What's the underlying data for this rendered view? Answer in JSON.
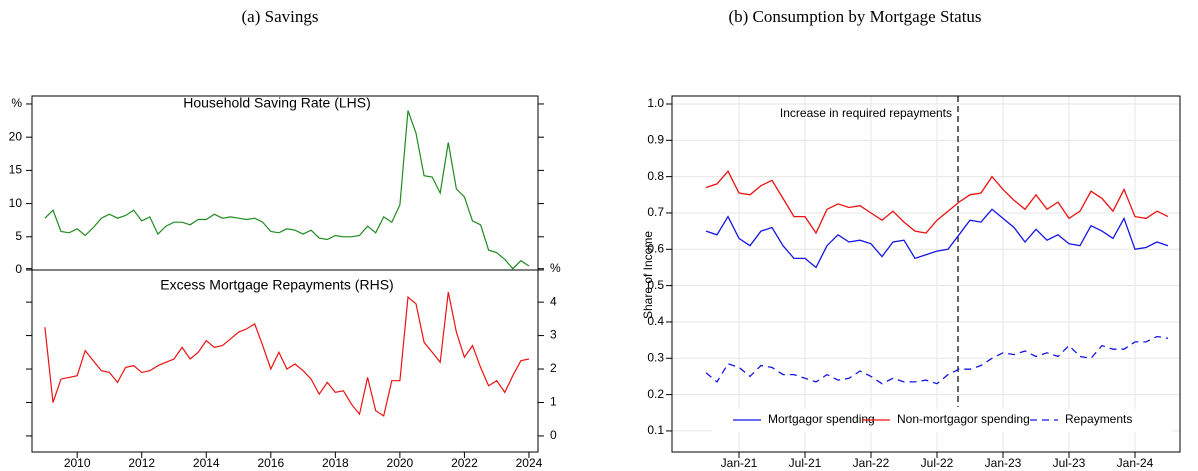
{
  "chart_data": [
    {
      "type": "line",
      "caption": "(a) Savings",
      "x": [
        2009,
        2009.25,
        2009.5,
        2009.75,
        2010,
        2010.25,
        2010.5,
        2010.75,
        2011,
        2011.25,
        2011.5,
        2011.75,
        2012,
        2012.25,
        2012.5,
        2012.75,
        2013,
        2013.25,
        2013.5,
        2013.75,
        2014,
        2014.25,
        2014.5,
        2014.75,
        2015,
        2015.25,
        2015.5,
        2015.75,
        2016,
        2016.25,
        2016.5,
        2016.75,
        2017,
        2017.25,
        2017.5,
        2017.75,
        2018,
        2018.25,
        2018.5,
        2018.75,
        2019,
        2019.25,
        2019.5,
        2019.75,
        2020,
        2020.25,
        2020.5,
        2020.75,
        2021,
        2021.25,
        2021.5,
        2021.75,
        2022,
        2022.25,
        2022.5,
        2022.75,
        2023,
        2023.25,
        2023.5,
        2023.75,
        2024
      ],
      "xlim": [
        2008.6,
        2024.28
      ],
      "xticks": [
        2010,
        2012,
        2014,
        2016,
        2018,
        2020,
        2022,
        2024
      ],
      "panels": [
        {
          "tick_side": "left",
          "ylim": [
            0,
            26.2
          ],
          "yticks": [
            0,
            5,
            10,
            15,
            20,
            {
              "value": 25,
              "label": "%"
            }
          ],
          "series": [
            {
              "name": "Household Saving Rate (LHS)",
              "color": "#1f8a1f",
              "values": [
                7.8,
                9.0,
                5.8,
                5.6,
                6.2,
                5.2,
                6.4,
                7.8,
                8.4,
                7.8,
                8.2,
                9.0,
                7.4,
                8.0,
                5.4,
                6.6,
                7.2,
                7.2,
                6.8,
                7.6,
                7.6,
                8.4,
                7.8,
                8.0,
                7.8,
                7.6,
                7.8,
                7.2,
                5.8,
                5.6,
                6.2,
                6.0,
                5.4,
                6.0,
                4.8,
                4.6,
                5.2,
                5.0,
                5.0,
                5.2,
                6.6,
                5.6,
                8.0,
                7.2,
                9.8,
                24.0,
                20.6,
                14.2,
                14.0,
                11.6,
                19.2,
                12.2,
                11.0,
                7.4,
                6.8,
                3.0,
                2.6,
                1.6,
                0.2,
                1.4,
                0.6
              ]
            }
          ]
        },
        {
          "tick_side": "right",
          "ylim": [
            -0.48,
            4.96
          ],
          "yticks": [
            0,
            1,
            2,
            3,
            4,
            {
              "value": 5,
              "label": "%"
            }
          ],
          "series": [
            {
              "name": "Excess Mortgage Repayments (RHS)",
              "color": "#ee1111",
              "values": [
                3.25,
                1.0,
                1.7,
                1.75,
                1.8,
                2.55,
                2.25,
                1.95,
                1.9,
                1.6,
                2.05,
                2.1,
                1.9,
                1.95,
                2.1,
                2.2,
                2.3,
                2.65,
                2.3,
                2.5,
                2.85,
                2.65,
                2.7,
                2.9,
                3.1,
                3.2,
                3.35,
                2.7,
                2.0,
                2.5,
                2.0,
                2.15,
                1.95,
                1.7,
                1.25,
                1.6,
                1.3,
                1.35,
                0.95,
                0.65,
                1.75,
                0.75,
                0.6,
                1.65,
                1.65,
                4.15,
                3.95,
                2.8,
                2.5,
                2.2,
                4.3,
                3.1,
                2.35,
                2.7,
                2.05,
                1.5,
                1.65,
                1.3,
                1.8,
                2.25,
                2.3
              ]
            }
          ]
        }
      ]
    },
    {
      "type": "line",
      "caption": "(b) Consumption by Mortgage Status",
      "ylabel": "Share of Income",
      "categories": [
        null,
        null,
        null,
        "Jan-21",
        null,
        null,
        null,
        null,
        null,
        "Jul-21",
        null,
        null,
        null,
        null,
        null,
        "Jan-22",
        null,
        null,
        null,
        null,
        null,
        "Jul-22",
        null,
        null,
        null,
        null,
        null,
        "Jan-23",
        null,
        null,
        null,
        null,
        null,
        "Jul-23",
        null,
        null,
        null,
        null,
        null,
        "Jan-24",
        null,
        null,
        null
      ],
      "ylim": [
        0.042,
        1.022
      ],
      "yticks": [
        0.1,
        0.2,
        0.3,
        0.4,
        0.5,
        0.6,
        0.7,
        0.8,
        0.9,
        {
          "value": 1,
          "label": "1.0"
        }
      ],
      "grid": true,
      "legend": "bottom",
      "annotation": "Increase in required repayments",
      "series": [
        {
          "name": "Mortgagor spending",
          "color": "#1515e6",
          "linestyle": "solid",
          "values": [
            0.65,
            0.64,
            0.69,
            0.63,
            0.61,
            0.65,
            0.66,
            0.61,
            0.575,
            0.575,
            0.55,
            0.61,
            0.64,
            0.62,
            0.625,
            0.615,
            0.58,
            0.62,
            0.625,
            0.575,
            0.585,
            0.595,
            0.6,
            0.64,
            0.68,
            0.675,
            0.71,
            0.685,
            0.66,
            0.62,
            0.655,
            0.625,
            0.64,
            0.615,
            0.61,
            0.665,
            0.65,
            0.63,
            0.685,
            0.6,
            0.605,
            0.62,
            0.61
          ]
        },
        {
          "name": "Non-mortgagor spending",
          "color": "#ee1111",
          "linestyle": "solid",
          "values": [
            0.77,
            0.78,
            0.815,
            0.755,
            0.75,
            0.775,
            0.79,
            0.74,
            0.69,
            0.69,
            0.645,
            0.71,
            0.725,
            0.715,
            0.72,
            0.7,
            0.68,
            0.705,
            0.675,
            0.65,
            0.645,
            0.68,
            0.705,
            0.73,
            0.75,
            0.755,
            0.8,
            0.765,
            0.735,
            0.71,
            0.75,
            0.71,
            0.73,
            0.685,
            0.705,
            0.76,
            0.74,
            0.705,
            0.765,
            0.69,
            0.685,
            0.705,
            0.69
          ]
        },
        {
          "name": "Repayments",
          "color": "#1515e6",
          "linestyle": "dashed",
          "values": [
            0.26,
            0.235,
            0.285,
            0.275,
            0.25,
            0.28,
            0.275,
            0.255,
            0.255,
            0.245,
            0.235,
            0.255,
            0.24,
            0.245,
            0.265,
            0.25,
            0.23,
            0.245,
            0.235,
            0.235,
            0.24,
            0.23,
            0.255,
            0.27,
            0.27,
            0.28,
            0.3,
            0.315,
            0.31,
            0.32,
            0.305,
            0.315,
            0.305,
            0.335,
            0.305,
            0.3,
            0.335,
            0.325,
            0.325,
            0.345,
            0.345,
            0.36,
            0.355
          ]
        }
      ]
    }
  ]
}
